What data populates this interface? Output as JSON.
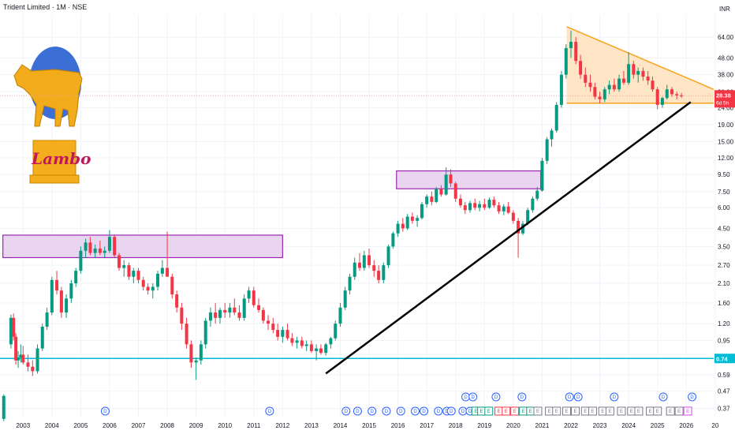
{
  "header": {
    "title": "Trident Limited · 1M · NSE"
  },
  "logo": {
    "text": "Lambo"
  },
  "colors": {
    "up": "#089981",
    "down": "#f23645",
    "rect_fill": "#e9d5ef",
    "rect_stroke": "#9c27b0",
    "triangle_fill": "#fde5c6",
    "triangle_stroke": "#f7a21b",
    "trendline": "#000000",
    "support": "#00bcd4",
    "price_tag": "#f23645"
  },
  "chart_data": {
    "type": "candlestick",
    "y_scale": "log",
    "unit_label": "INR",
    "y_ticks": [
      "64.00",
      "48.00",
      "38.00",
      "30.00",
      "24.00",
      "19.00",
      "15.00",
      "12.00",
      "9.50",
      "7.50",
      "6.00",
      "4.50",
      "3.50",
      "2.70",
      "2.10",
      "1.60",
      "1.20",
      "0.95",
      "0.74",
      "0.59",
      "0.47",
      "0.37"
    ],
    "x_ticks": [
      "2003",
      "2004",
      "2005",
      "2006",
      "2007",
      "2008",
      "2009",
      "2010",
      "2011",
      "2012",
      "2013",
      "2014",
      "2015",
      "2016",
      "2017",
      "2018",
      "2019",
      "2020",
      "2021",
      "2022",
      "2023",
      "2024",
      "2025",
      "2026",
      "20"
    ],
    "ylim": [
      0.33,
      88
    ],
    "xlim": [
      2002.2,
      2026.95
    ],
    "last_price": {
      "value": "28.38",
      "countdown": "6d 5h"
    },
    "support_level": {
      "value": "0.74",
      "price": 0.74
    },
    "candles": [
      [
        2002.33,
        0.32,
        0.45,
        0.31,
        0.44
      ],
      [
        2002.58,
        0.9,
        1.36,
        0.85,
        1.3
      ],
      [
        2002.67,
        1.3,
        1.38,
        0.95,
        1.0
      ],
      [
        2002.75,
        1.0,
        1.05,
        0.68,
        0.72
      ],
      [
        2002.83,
        0.72,
        0.82,
        0.65,
        0.75
      ],
      [
        2002.92,
        0.75,
        0.9,
        0.7,
        0.78
      ],
      [
        2003.0,
        0.78,
        0.88,
        0.68,
        0.7
      ],
      [
        2003.17,
        0.7,
        0.78,
        0.62,
        0.66
      ],
      [
        2003.33,
        0.66,
        0.72,
        0.58,
        0.62
      ],
      [
        2003.5,
        0.62,
        0.9,
        0.6,
        0.85
      ],
      [
        2003.67,
        0.85,
        1.2,
        0.82,
        1.15
      ],
      [
        2003.83,
        1.15,
        1.5,
        1.1,
        1.4
      ],
      [
        2004.0,
        1.4,
        2.3,
        1.35,
        2.2
      ],
      [
        2004.17,
        2.2,
        2.5,
        1.8,
        1.9
      ],
      [
        2004.33,
        1.9,
        2.0,
        1.3,
        1.4
      ],
      [
        2004.5,
        1.4,
        1.8,
        1.3,
        1.7
      ],
      [
        2004.67,
        1.7,
        2.2,
        1.6,
        2.1
      ],
      [
        2004.83,
        2.1,
        2.6,
        2.0,
        2.5
      ],
      [
        2005.0,
        2.5,
        3.5,
        2.4,
        3.3
      ],
      [
        2005.17,
        3.3,
        3.9,
        3.0,
        3.7
      ],
      [
        2005.33,
        3.7,
        4.0,
        3.1,
        3.2
      ],
      [
        2005.5,
        3.2,
        3.6,
        3.0,
        3.4
      ],
      [
        2005.67,
        3.4,
        3.8,
        3.1,
        3.2
      ],
      [
        2005.83,
        3.2,
        3.5,
        3.0,
        3.3
      ],
      [
        2006.0,
        3.3,
        4.4,
        3.2,
        4.0
      ],
      [
        2006.17,
        4.0,
        4.1,
        3.0,
        3.1
      ],
      [
        2006.33,
        3.1,
        3.2,
        2.5,
        2.6
      ],
      [
        2006.5,
        2.6,
        2.9,
        2.3,
        2.7
      ],
      [
        2006.67,
        2.7,
        2.8,
        2.2,
        2.3
      ],
      [
        2006.83,
        2.3,
        2.6,
        2.1,
        2.5
      ],
      [
        2007.0,
        2.5,
        2.6,
        2.1,
        2.2
      ],
      [
        2007.17,
        2.2,
        2.3,
        1.9,
        2.0
      ],
      [
        2007.33,
        2.0,
        2.1,
        1.8,
        1.9
      ],
      [
        2007.5,
        1.9,
        2.1,
        1.7,
        2.0
      ],
      [
        2007.67,
        2.0,
        2.5,
        1.9,
        2.4
      ],
      [
        2007.83,
        2.4,
        2.9,
        2.3,
        2.6
      ],
      [
        2008.0,
        2.6,
        4.3,
        2.5,
        2.3
      ],
      [
        2008.17,
        2.3,
        2.4,
        1.7,
        1.8
      ],
      [
        2008.33,
        1.8,
        1.9,
        1.4,
        1.5
      ],
      [
        2008.5,
        1.5,
        1.6,
        1.1,
        1.2
      ],
      [
        2008.67,
        1.2,
        1.3,
        0.85,
        0.9
      ],
      [
        2008.83,
        0.9,
        0.95,
        0.65,
        0.7
      ],
      [
        2009.0,
        0.7,
        0.75,
        0.55,
        0.72
      ],
      [
        2009.17,
        0.72,
        0.95,
        0.68,
        0.9
      ],
      [
        2009.33,
        0.9,
        1.3,
        0.85,
        1.25
      ],
      [
        2009.5,
        1.25,
        1.5,
        1.15,
        1.4
      ],
      [
        2009.67,
        1.4,
        1.6,
        1.2,
        1.3
      ],
      [
        2009.83,
        1.3,
        1.5,
        1.2,
        1.45
      ],
      [
        2010.0,
        1.45,
        1.6,
        1.3,
        1.4
      ],
      [
        2010.17,
        1.4,
        1.6,
        1.3,
        1.5
      ],
      [
        2010.33,
        1.5,
        1.7,
        1.35,
        1.4
      ],
      [
        2010.5,
        1.4,
        1.55,
        1.25,
        1.3
      ],
      [
        2010.67,
        1.3,
        1.8,
        1.25,
        1.7
      ],
      [
        2010.83,
        1.7,
        2.0,
        1.6,
        1.9
      ],
      [
        2011.0,
        1.9,
        2.0,
        1.5,
        1.55
      ],
      [
        2011.17,
        1.55,
        1.7,
        1.4,
        1.45
      ],
      [
        2011.33,
        1.45,
        1.5,
        1.2,
        1.25
      ],
      [
        2011.5,
        1.25,
        1.35,
        1.1,
        1.2
      ],
      [
        2011.67,
        1.2,
        1.3,
        1.05,
        1.1
      ],
      [
        2011.83,
        1.1,
        1.2,
        0.95,
        1.0
      ],
      [
        2012.0,
        1.0,
        1.15,
        0.92,
        1.1
      ],
      [
        2012.17,
        1.1,
        1.2,
        0.95,
        0.98
      ],
      [
        2012.33,
        0.98,
        1.05,
        0.88,
        0.92
      ],
      [
        2012.5,
        0.92,
        1.0,
        0.85,
        0.95
      ],
      [
        2012.67,
        0.95,
        1.0,
        0.85,
        0.88
      ],
      [
        2012.83,
        0.88,
        0.95,
        0.82,
        0.9
      ],
      [
        2013.0,
        0.9,
        0.95,
        0.8,
        0.82
      ],
      [
        2013.17,
        0.82,
        0.9,
        0.72,
        0.85
      ],
      [
        2013.33,
        0.85,
        0.9,
        0.78,
        0.8
      ],
      [
        2013.5,
        0.8,
        0.92,
        0.77,
        0.9
      ],
      [
        2013.67,
        0.9,
        1.0,
        0.85,
        0.98
      ],
      [
        2013.83,
        0.98,
        1.25,
        0.95,
        1.2
      ],
      [
        2014.0,
        1.2,
        1.6,
        1.15,
        1.5
      ],
      [
        2014.17,
        1.5,
        2.0,
        1.45,
        1.9
      ],
      [
        2014.33,
        1.9,
        2.4,
        1.8,
        2.3
      ],
      [
        2014.5,
        2.3,
        3.0,
        2.2,
        2.8
      ],
      [
        2014.67,
        2.8,
        3.2,
        2.5,
        2.6
      ],
      [
        2014.83,
        2.6,
        3.3,
        2.5,
        3.1
      ],
      [
        2015.0,
        3.1,
        3.4,
        2.6,
        2.7
      ],
      [
        2015.17,
        2.7,
        2.9,
        2.3,
        2.5
      ],
      [
        2015.33,
        2.5,
        2.7,
        2.1,
        2.2
      ],
      [
        2015.5,
        2.2,
        2.8,
        2.1,
        2.7
      ],
      [
        2015.67,
        2.7,
        3.6,
        2.6,
        3.5
      ],
      [
        2015.83,
        3.5,
        4.3,
        3.4,
        4.2
      ],
      [
        2016.0,
        4.2,
        5.0,
        4.0,
        4.8
      ],
      [
        2016.17,
        4.8,
        5.2,
        4.3,
        4.5
      ],
      [
        2016.33,
        4.5,
        5.5,
        4.4,
        5.3
      ],
      [
        2016.5,
        5.3,
        5.6,
        4.8,
        5.0
      ],
      [
        2016.67,
        5.0,
        5.4,
        4.6,
        5.2
      ],
      [
        2016.83,
        5.2,
        6.5,
        5.1,
        6.3
      ],
      [
        2017.0,
        6.3,
        7.2,
        6.0,
        7.0
      ],
      [
        2017.17,
        7.0,
        7.5,
        6.2,
        6.5
      ],
      [
        2017.33,
        6.5,
        8.0,
        6.4,
        7.8
      ],
      [
        2017.5,
        7.8,
        8.2,
        7.0,
        7.2
      ],
      [
        2017.67,
        7.2,
        10.5,
        7.1,
        9.5
      ],
      [
        2017.83,
        9.5,
        10.2,
        8.0,
        8.4
      ],
      [
        2018.0,
        8.4,
        8.6,
        6.5,
        6.8
      ],
      [
        2018.17,
        6.8,
        7.2,
        6.0,
        6.2
      ],
      [
        2018.33,
        6.2,
        6.5,
        5.5,
        5.8
      ],
      [
        2018.5,
        5.8,
        6.6,
        5.6,
        6.4
      ],
      [
        2018.67,
        6.4,
        6.8,
        5.8,
        6.0
      ],
      [
        2018.83,
        6.0,
        6.6,
        5.7,
        6.3
      ],
      [
        2019.0,
        6.3,
        6.8,
        5.8,
        6.0
      ],
      [
        2019.17,
        6.0,
        6.9,
        5.9,
        6.7
      ],
      [
        2019.33,
        6.7,
        7.0,
        6.0,
        6.2
      ],
      [
        2019.5,
        6.2,
        6.5,
        5.5,
        5.7
      ],
      [
        2019.67,
        5.7,
        6.3,
        5.4,
        6.1
      ],
      [
        2019.83,
        6.1,
        6.5,
        5.5,
        5.6
      ],
      [
        2020.0,
        5.6,
        5.8,
        4.8,
        5.0
      ],
      [
        2020.17,
        5.0,
        5.2,
        3.0,
        4.2
      ],
      [
        2020.33,
        4.2,
        5.0,
        4.1,
        4.8
      ],
      [
        2020.5,
        4.8,
        6.0,
        4.7,
        5.8
      ],
      [
        2020.67,
        5.8,
        7.0,
        5.6,
        6.8
      ],
      [
        2020.83,
        6.8,
        8.0,
        6.6,
        7.6
      ],
      [
        2021.0,
        7.6,
        12.0,
        7.5,
        11.5
      ],
      [
        2021.17,
        11.5,
        16.0,
        11.0,
        15.5
      ],
      [
        2021.33,
        15.5,
        18.0,
        14.0,
        17.5
      ],
      [
        2021.5,
        17.5,
        26.0,
        17.0,
        25.0
      ],
      [
        2021.67,
        25.0,
        40.0,
        24.0,
        38.0
      ],
      [
        2021.83,
        38.0,
        58.0,
        36.0,
        55.0
      ],
      [
        2022.0,
        55.0,
        70.0,
        48.0,
        60.0
      ],
      [
        2022.17,
        60.0,
        64.0,
        44.0,
        46.0
      ],
      [
        2022.33,
        46.0,
        50.0,
        36.0,
        38.0
      ],
      [
        2022.5,
        38.0,
        42.0,
        32.0,
        34.0
      ],
      [
        2022.67,
        34.0,
        38.0,
        30.0,
        32.0
      ],
      [
        2022.83,
        32.0,
        34.0,
        27.0,
        28.0
      ],
      [
        2023.0,
        28.0,
        30.0,
        25.5,
        27.0
      ],
      [
        2023.17,
        27.0,
        32.0,
        26.0,
        31.0
      ],
      [
        2023.33,
        31.0,
        35.0,
        29.0,
        33.0
      ],
      [
        2023.5,
        33.0,
        36.0,
        30.0,
        31.0
      ],
      [
        2023.67,
        31.0,
        38.0,
        30.0,
        36.0
      ],
      [
        2023.83,
        36.0,
        40.0,
        33.0,
        34.0
      ],
      [
        2024.0,
        34.0,
        52.0,
        33.0,
        44.0
      ],
      [
        2024.17,
        44.0,
        46.0,
        36.0,
        38.0
      ],
      [
        2024.33,
        38.0,
        42.0,
        34.0,
        40.0
      ],
      [
        2024.5,
        40.0,
        42.0,
        35.0,
        37.0
      ],
      [
        2024.67,
        37.0,
        40.0,
        33.0,
        35.0
      ],
      [
        2024.83,
        35.0,
        37.0,
        30.0,
        31.0
      ],
      [
        2025.0,
        31.0,
        32.0,
        23.5,
        25.0
      ],
      [
        2025.17,
        25.0,
        28.0,
        24.0,
        27.5
      ],
      [
        2025.33,
        27.5,
        33.0,
        27.0,
        31.0
      ],
      [
        2025.5,
        31.0,
        32.0,
        28.0,
        29.0
      ],
      [
        2025.67,
        29.0,
        30.0,
        27.0,
        28.5
      ],
      [
        2025.83,
        28.5,
        29.5,
        27.5,
        28.38
      ]
    ],
    "rectangles": [
      {
        "x0": 2002.3,
        "x1": 2012.0,
        "y0": 3.0,
        "y1": 4.1
      },
      {
        "x0": 2015.95,
        "x1": 2020.95,
        "y0": 7.8,
        "y1": 10.0
      }
    ],
    "trendline": {
      "x0": 2013.5,
      "x1": 2026.15,
      "y0": 0.6,
      "y1": 26.0
    },
    "triangle": [
      [
        2021.85,
        74.0
      ],
      [
        2026.95,
        31.0
      ],
      [
        2021.85,
        25.6
      ],
      [
        2026.95,
        25.6
      ]
    ],
    "event_markers": [
      {
        "x": 2005.85,
        "row": 0,
        "label": "D",
        "style": "div"
      },
      {
        "x": 2011.55,
        "row": 0,
        "label": "D",
        "style": "div"
      },
      {
        "x": 2014.2,
        "row": 0,
        "label": "D",
        "style": "div"
      },
      {
        "x": 2014.6,
        "row": 0,
        "label": "D",
        "style": "div"
      },
      {
        "x": 2015.1,
        "row": 0,
        "label": "D",
        "style": "div"
      },
      {
        "x": 2015.6,
        "row": 0,
        "label": "D",
        "style": "div"
      },
      {
        "x": 2016.1,
        "row": 0,
        "label": "D",
        "style": "div"
      },
      {
        "x": 2016.6,
        "row": 0,
        "label": "D",
        "style": "div"
      },
      {
        "x": 2016.9,
        "row": 0,
        "label": "D",
        "style": "div"
      },
      {
        "x": 2017.4,
        "row": 0,
        "label": "D",
        "style": "div"
      },
      {
        "x": 2017.7,
        "row": 0,
        "label": "D",
        "style": "div"
      },
      {
        "x": 2017.85,
        "row": 0,
        "label": "D",
        "style": "div"
      },
      {
        "x": 2018.25,
        "row": 0,
        "label": "D",
        "style": "div"
      },
      {
        "x": 2018.5,
        "row": 0,
        "label": "D",
        "style": "div"
      },
      {
        "x": 2018.7,
        "row": 0,
        "label": "E",
        "style": "earn_up"
      },
      {
        "x": 2018.9,
        "row": 0,
        "label": "E",
        "style": "earn_up"
      },
      {
        "x": 2019.15,
        "row": 0,
        "label": "E",
        "style": "earn_up"
      },
      {
        "x": 2019.5,
        "row": 0,
        "label": "E",
        "style": "earn_down"
      },
      {
        "x": 2019.75,
        "row": 0,
        "label": "E",
        "style": "earn_down"
      },
      {
        "x": 2020.05,
        "row": 0,
        "label": "E",
        "style": "earn_down"
      },
      {
        "x": 2020.35,
        "row": 0,
        "label": "E",
        "style": "earn_up"
      },
      {
        "x": 2020.6,
        "row": 0,
        "label": "E",
        "style": "earn_up"
      },
      {
        "x": 2020.85,
        "row": 0,
        "label": "E",
        "style": "earn_plain"
      },
      {
        "x": 2021.25,
        "row": 0,
        "label": "E",
        "style": "earn_plain"
      },
      {
        "x": 2021.5,
        "row": 0,
        "label": "E",
        "style": "earn_plain"
      },
      {
        "x": 2021.85,
        "row": 0,
        "label": "E",
        "style": "earn_plain"
      },
      {
        "x": 2022.15,
        "row": 0,
        "label": "E",
        "style": "earn_plain"
      },
      {
        "x": 2022.5,
        "row": 0,
        "label": "E",
        "style": "earn_plain"
      },
      {
        "x": 2022.75,
        "row": 0,
        "label": "E",
        "style": "earn_plain"
      },
      {
        "x": 2023.1,
        "row": 0,
        "label": "E",
        "style": "earn_plain"
      },
      {
        "x": 2023.35,
        "row": 0,
        "label": "E",
        "style": "earn_plain"
      },
      {
        "x": 2023.75,
        "row": 0,
        "label": "E",
        "style": "earn_plain"
      },
      {
        "x": 2024.1,
        "row": 0,
        "label": "E",
        "style": "earn_plain"
      },
      {
        "x": 2024.35,
        "row": 0,
        "label": "E",
        "style": "earn_plain"
      },
      {
        "x": 2024.75,
        "row": 0,
        "label": "E",
        "style": "earn_plain"
      },
      {
        "x": 2025.0,
        "row": 0,
        "label": "E",
        "style": "earn_plain"
      },
      {
        "x": 2025.45,
        "row": 0,
        "label": "E",
        "style": "earn_plain"
      },
      {
        "x": 2025.75,
        "row": 0,
        "label": "E",
        "style": "earn_plain"
      },
      {
        "x": 2026.05,
        "row": 0,
        "label": "E",
        "style": "earn_pink"
      },
      {
        "x": 2018.35,
        "row": 1,
        "label": "D",
        "style": "div"
      },
      {
        "x": 2018.6,
        "row": 1,
        "label": "D",
        "style": "div"
      },
      {
        "x": 2019.4,
        "row": 1,
        "label": "D",
        "style": "div"
      },
      {
        "x": 2020.3,
        "row": 1,
        "label": "D",
        "style": "div"
      },
      {
        "x": 2021.95,
        "row": 1,
        "label": "D",
        "style": "div"
      },
      {
        "x": 2022.25,
        "row": 1,
        "label": "D",
        "style": "div"
      },
      {
        "x": 2023.5,
        "row": 1,
        "label": "D",
        "style": "div"
      },
      {
        "x": 2025.2,
        "row": 1,
        "label": "D",
        "style": "div"
      },
      {
        "x": 2026.2,
        "row": 1,
        "label": "D",
        "style": "div"
      }
    ]
  }
}
